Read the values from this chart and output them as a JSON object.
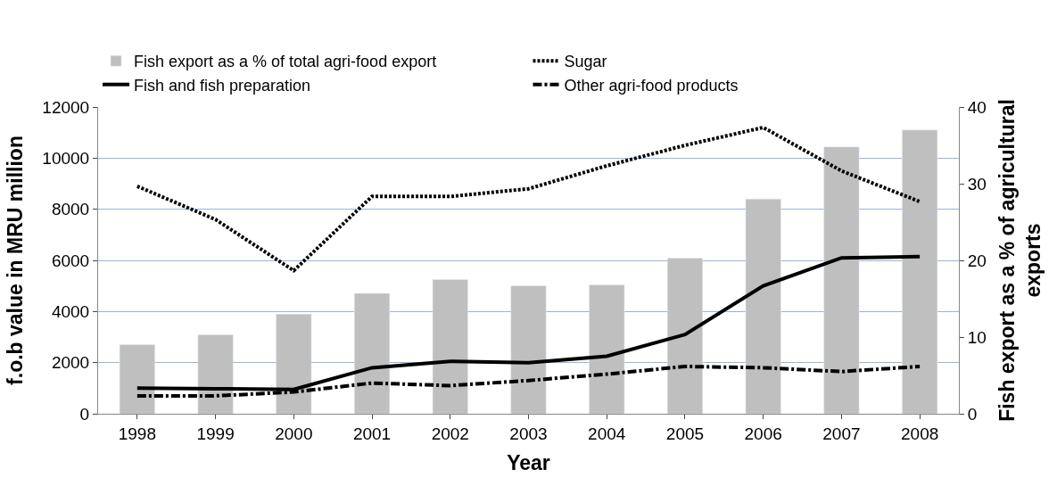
{
  "chart_data": {
    "type": "line",
    "xlabel": "Year",
    "ylabel": "f.o.b value in MRU million",
    "y2label": "Fish export as a % of agricultural exports",
    "categories": [
      "1998",
      "1999",
      "2000",
      "2001",
      "2002",
      "2003",
      "2004",
      "2005",
      "2006",
      "2007",
      "2008"
    ],
    "series": [
      {
        "name": "Fish export as a % of total agri-food export",
        "type": "bar",
        "axis": "y2",
        "color": "#bfbfbf",
        "values": [
          9,
          10.3,
          13,
          15.7,
          17.5,
          16.7,
          16.8,
          20.3,
          28,
          34.8,
          37
        ]
      },
      {
        "name": "Sugar",
        "color": "#000000",
        "line_style": "dotted",
        "values": [
          8900,
          7600,
          5600,
          8500,
          8500,
          8800,
          9700,
          10500,
          11200,
          9500,
          8300
        ]
      },
      {
        "name": "Fish and fish preparation",
        "color": "#000000",
        "line_style": "solid",
        "values": [
          1000,
          980,
          950,
          1800,
          2050,
          2000,
          2250,
          3100,
          5000,
          6100,
          6150
        ]
      },
      {
        "name": "Other agri-food products",
        "color": "#000000",
        "line_style": "dashed",
        "values": [
          700,
          700,
          850,
          1200,
          1100,
          1300,
          1550,
          1850,
          1800,
          1650,
          1850
        ]
      }
    ],
    "ylim": [
      0,
      12000
    ],
    "yticks": [
      0,
      2000,
      4000,
      6000,
      8000,
      10000,
      12000
    ],
    "y2lim": [
      0,
      40
    ],
    "y2ticks": [
      0,
      10,
      20,
      30,
      40
    ],
    "grid": "y",
    "legend": "top",
    "marker": "none"
  }
}
